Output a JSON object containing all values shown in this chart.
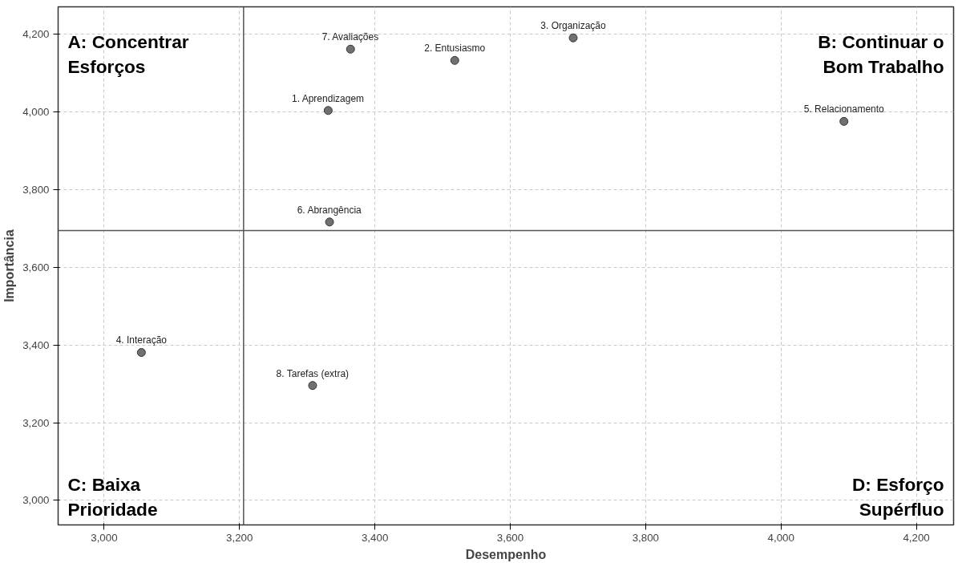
{
  "chart_data": {
    "type": "scatter",
    "xlabel": "Desempenho",
    "ylabel": "Importância",
    "x": [
      3331,
      3518,
      3693,
      3055,
      4093,
      3333,
      3364,
      3308
    ],
    "values": [
      4004,
      4133,
      4191,
      3381,
      3976,
      3717,
      4162,
      3296
    ],
    "color": "#707070",
    "marker": "circle",
    "xlim": [
      2932,
      4255
    ],
    "ylim": [
      2937,
      4271
    ],
    "xticks": [
      {
        "value": 3000,
        "label": "3,000"
      },
      {
        "value": 3200,
        "label": "3,200"
      },
      {
        "value": 3400,
        "label": "3,400"
      },
      {
        "value": 3600,
        "label": "3,600"
      },
      {
        "value": 3800,
        "label": "3,800"
      },
      {
        "value": 4000,
        "label": "4,000"
      },
      {
        "value": 4200,
        "label": "4,200"
      }
    ],
    "yticks": [
      {
        "value": 3000,
        "label": "3,000"
      },
      {
        "value": 3200,
        "label": "3,200"
      },
      {
        "value": 3400,
        "label": "3,400"
      },
      {
        "value": 3600,
        "label": "3,600"
      },
      {
        "value": 3800,
        "label": "3,800"
      },
      {
        "value": 4000,
        "label": "4,000"
      },
      {
        "value": 4200,
        "label": "4,200"
      }
    ],
    "grid": true,
    "ref_lines": [
      {
        "axis": "x",
        "value": 3206,
        "color": "#555555"
      },
      {
        "axis": "y",
        "value": 3695,
        "color": "#555555"
      }
    ],
    "annotations": [
      {
        "text": "1. Aprendizagem",
        "x": 3331,
        "y": 4004
      },
      {
        "text": "2. Entusiasmo",
        "x": 3518,
        "y": 4133
      },
      {
        "text": "3. Organização",
        "x": 3693,
        "y": 4191
      },
      {
        "text": "4. Interação",
        "x": 3055,
        "y": 3381
      },
      {
        "text": "5. Relacionamento",
        "x": 4093,
        "y": 3976
      },
      {
        "text": "6. Abrangência",
        "x": 3333,
        "y": 3717
      },
      {
        "text": "7. Avaliações",
        "x": 3364,
        "y": 4162
      },
      {
        "text": "8. Tarefas (extra)",
        "x": 3308,
        "y": 3296
      },
      "A: Concentrar\nEsforços",
      "B: Continuar o\nBom Trabalho",
      "C: Baixa\nPrioridade",
      "D: Esforço\nSupérfluo"
    ]
  }
}
